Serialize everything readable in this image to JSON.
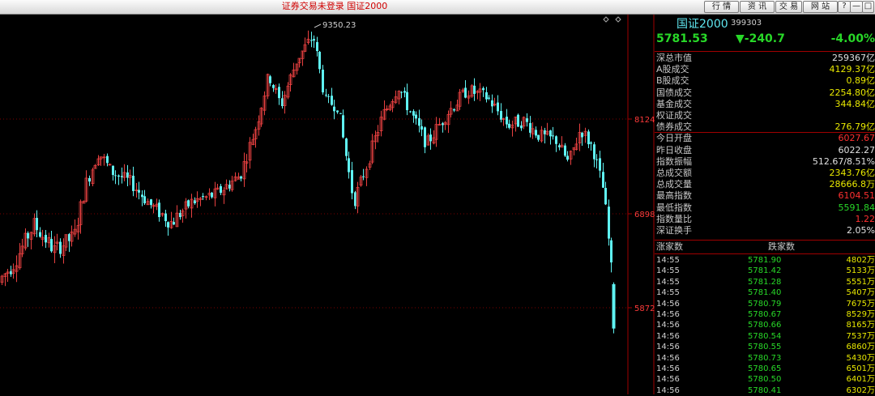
{
  "window": {
    "title": "证券交易未登录  国证2000",
    "buttons": [
      "行 情",
      "资 讯",
      "交 易",
      "网 站"
    ],
    "controls": [
      "?",
      "—",
      "□",
      "×"
    ]
  },
  "chart_data": {
    "type": "candlestick",
    "yticks": [
      5872,
      6898,
      8124
    ],
    "ylim": [
      5500,
      9550
    ],
    "peak_label": "9350.23",
    "low_value": 5591.84,
    "colors": {
      "up": "#e84040",
      "down": "#5ff2f2",
      "grid": "#7a0000"
    }
  },
  "quote": {
    "name": "国证2000",
    "code": "399303",
    "price": "5781.53",
    "change": "▼-240.7",
    "change_pct": "-4.00%"
  },
  "stats": [
    {
      "label": "深总市值",
      "value": "259367亿",
      "color": "#e0e0e0"
    },
    {
      "label": "A股成交",
      "value": "4129.37亿",
      "color": "#e8e800"
    },
    {
      "label": "B股成交",
      "value": "0.89亿",
      "color": "#e8e800"
    },
    {
      "label": "国债成交",
      "value": "2254.80亿",
      "color": "#e8e800"
    },
    {
      "label": "基金成交",
      "value": "344.84亿",
      "color": "#e8e800"
    },
    {
      "label": "权证成交",
      "value": "",
      "color": "#e8e800"
    },
    {
      "label": "债券成交",
      "value": "276.79亿",
      "color": "#e8e800"
    },
    {
      "label": "今日开盘",
      "value": "6027.67",
      "color": "#ff3030"
    },
    {
      "label": "昨日收盘",
      "value": "6022.27",
      "color": "#e0e0e0"
    },
    {
      "label": "指数振幅",
      "value": "512.67/8.51%",
      "color": "#e0e0e0"
    },
    {
      "label": "总成交额",
      "value": "2343.76亿",
      "color": "#e8e800"
    },
    {
      "label": "总成交量",
      "value": "28666.8万",
      "color": "#e8e800"
    },
    {
      "label": "最高指数",
      "value": "6104.51",
      "color": "#ff3030"
    },
    {
      "label": "最低指数",
      "value": "5591.84",
      "color": "#28d828"
    },
    {
      "label": "指数量比",
      "value": "1.22",
      "color": "#ff3030"
    },
    {
      "label": "深证换手",
      "value": "2.05%",
      "color": "#e0e0e0"
    }
  ],
  "ticks_header": {
    "up_count": "涨家数",
    "down_count": "跌家数"
  },
  "ticks": [
    {
      "time": "14:55",
      "price": "5781.90",
      "vol": "4802万"
    },
    {
      "time": "14:55",
      "price": "5781.42",
      "vol": "5133万"
    },
    {
      "time": "14:55",
      "price": "5781.28",
      "vol": "5551万"
    },
    {
      "time": "14:55",
      "price": "5781.40",
      "vol": "5407万"
    },
    {
      "time": "14:56",
      "price": "5780.79",
      "vol": "7675万"
    },
    {
      "time": "14:56",
      "price": "5780.67",
      "vol": "8529万"
    },
    {
      "time": "14:56",
      "price": "5780.66",
      "vol": "8165万"
    },
    {
      "time": "14:56",
      "price": "5780.54",
      "vol": "7537万"
    },
    {
      "time": "14:56",
      "price": "5780.55",
      "vol": "6860万"
    },
    {
      "time": "14:56",
      "price": "5780.73",
      "vol": "5430万"
    },
    {
      "time": "14:56",
      "price": "5780.65",
      "vol": "6501万"
    },
    {
      "time": "14:56",
      "price": "5780.50",
      "vol": "6401万"
    },
    {
      "time": "14:56",
      "price": "5780.41",
      "vol": "6302万"
    }
  ]
}
